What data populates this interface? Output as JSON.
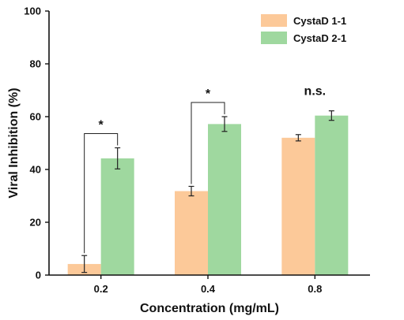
{
  "chart_data": {
    "type": "bar",
    "title": "",
    "xlabel": "Concentration (mg/mL)",
    "ylabel": "Viral Inhibition (%)",
    "ylim": [
      0,
      100
    ],
    "yticks": [
      0,
      20,
      40,
      60,
      80,
      100
    ],
    "categories": [
      "0.2",
      "0.4",
      "0.8"
    ],
    "series": [
      {
        "name": "CystaD 1-1",
        "color": "#fcc999",
        "values": [
          4.2,
          31.8,
          52.0
        ],
        "errors": [
          3.2,
          1.8,
          1.2
        ]
      },
      {
        "name": "CystaD 2-1",
        "color": "#9fd89f",
        "values": [
          44.2,
          57.2,
          60.4
        ],
        "errors": [
          4.0,
          2.8,
          1.8
        ]
      }
    ],
    "legend_position": "top-right",
    "annotations": [
      {
        "category": "0.2",
        "label": "*",
        "type": "bracket"
      },
      {
        "category": "0.4",
        "label": "*",
        "type": "bracket"
      },
      {
        "category": "0.8",
        "label": "n.s.",
        "type": "text"
      }
    ]
  }
}
